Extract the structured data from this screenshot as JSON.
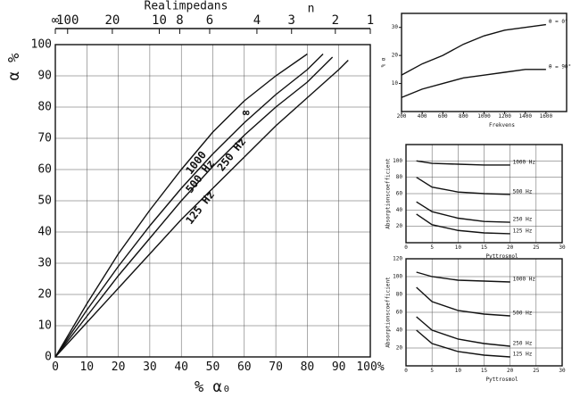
{
  "chart_data": [
    {
      "type": "line",
      "x2label": "Realimpedans",
      "x2sublabel": "n",
      "ylabel": "α %",
      "xlabel": "% α₀",
      "xlim": [
        0,
        100
      ],
      "ylim": [
        0,
        100
      ],
      "xticks": [
        0,
        10,
        20,
        30,
        40,
        50,
        60,
        70,
        80,
        90,
        {
          "value": 100,
          "label": "100%"
        }
      ],
      "yticks": [
        0,
        10,
        20,
        30,
        40,
        50,
        60,
        70,
        80,
        90,
        100
      ],
      "x2ticks": [
        {
          "value": 0,
          "label": "∞"
        },
        {
          "value": 3.9,
          "label": "100"
        },
        {
          "value": 18.1,
          "label": "20"
        },
        {
          "value": 33,
          "label": "10"
        },
        {
          "value": 39.5,
          "label": "8"
        },
        {
          "value": 49,
          "label": "6"
        },
        {
          "value": 64,
          "label": "4"
        },
        {
          "value": 75,
          "label": "3"
        },
        {
          "value": 88.9,
          "label": "2"
        },
        {
          "value": 100,
          "label": "1"
        }
      ],
      "grid": true,
      "annotations": [
        "∞"
      ],
      "series": [
        {
          "name": "1000",
          "color": "#111111",
          "x": [
            0,
            10,
            20,
            30,
            40,
            50,
            60,
            70,
            80
          ],
          "values": [
            0,
            17,
            33,
            47,
            60,
            72,
            82,
            90,
            97
          ]
        },
        {
          "name": "500 Hz",
          "color": "#111111",
          "x": [
            0,
            10,
            20,
            30,
            40,
            50,
            60,
            70,
            80,
            85
          ],
          "values": [
            0,
            15,
            29,
            42,
            54,
            65,
            75,
            84,
            92,
            97
          ]
        },
        {
          "name": "250 Hz",
          "color": "#111111",
          "x": [
            0,
            10,
            20,
            30,
            40,
            50,
            60,
            70,
            80,
            88
          ],
          "values": [
            0,
            13,
            26,
            38,
            50,
            61,
            71,
            80,
            88,
            96
          ]
        },
        {
          "name": "125 Hz",
          "color": "#111111",
          "x": [
            0,
            10,
            20,
            30,
            40,
            50,
            60,
            70,
            80,
            90,
            93
          ],
          "values": [
            0,
            11,
            22,
            33,
            44,
            54,
            64,
            74,
            83,
            92,
            95
          ]
        }
      ]
    },
    {
      "type": "line",
      "ylabel": "% α",
      "xlabel": "Frekvens",
      "xlim": [
        200,
        1800
      ],
      "ylim": [
        0,
        35
      ],
      "xticks": [
        200,
        400,
        600,
        800,
        1000,
        1200,
        1400,
        1600
      ],
      "yticks": [
        10,
        20,
        30
      ],
      "grid": false,
      "x": [
        200,
        400,
        600,
        800,
        1000,
        1200,
        1400,
        1600
      ],
      "series": [
        {
          "name": "θ = 0°",
          "color": "#111111",
          "values": [
            13,
            17,
            20,
            24,
            27,
            29,
            30,
            31
          ]
        },
        {
          "name": "θ = 90°",
          "color": "#111111",
          "values": [
            5,
            8,
            10,
            12,
            13,
            14,
            15,
            15
          ]
        }
      ]
    },
    {
      "type": "line",
      "ylabel": "Absorptionscoefficient",
      "xlabel": "Pyttrosmol",
      "xlim": [
        0,
        30
      ],
      "ylim": [
        0,
        120
      ],
      "xticks": [
        0,
        5,
        10,
        15,
        20,
        25,
        30
      ],
      "yticks": [
        20,
        40,
        60,
        80,
        100
      ],
      "grid": true,
      "x": [
        2,
        5,
        10,
        15,
        20
      ],
      "series": [
        {
          "name": "1000 Hz",
          "color": "#111111",
          "values": [
            100,
            97,
            96,
            95,
            95
          ]
        },
        {
          "name": "500 Hz",
          "color": "#111111",
          "values": [
            80,
            68,
            62,
            60,
            59
          ]
        },
        {
          "name": "250 Hz",
          "color": "#111111",
          "values": [
            50,
            38,
            30,
            26,
            25
          ]
        },
        {
          "name": "125 Hz",
          "color": "#111111",
          "values": [
            35,
            22,
            15,
            12,
            11
          ]
        }
      ]
    },
    {
      "type": "line",
      "ylabel": "Absorptionscoefficient",
      "xlabel": "Pyttrosmol",
      "xlim": [
        0,
        30
      ],
      "ylim": [
        0,
        120
      ],
      "xticks": [
        0,
        5,
        10,
        15,
        20,
        25,
        30
      ],
      "yticks": [
        20,
        40,
        60,
        80,
        100,
        120
      ],
      "grid": true,
      "x": [
        2,
        5,
        10,
        15,
        20
      ],
      "series": [
        {
          "name": "1000 Hz",
          "color": "#111111",
          "values": [
            105,
            100,
            96,
            95,
            94
          ]
        },
        {
          "name": "500 Hz",
          "color": "#111111",
          "values": [
            88,
            72,
            62,
            58,
            56
          ]
        },
        {
          "name": "250 Hz",
          "color": "#111111",
          "values": [
            55,
            40,
            30,
            25,
            22
          ]
        },
        {
          "name": "125 Hz",
          "color": "#111111",
          "values": [
            40,
            25,
            16,
            12,
            10
          ]
        }
      ]
    }
  ]
}
